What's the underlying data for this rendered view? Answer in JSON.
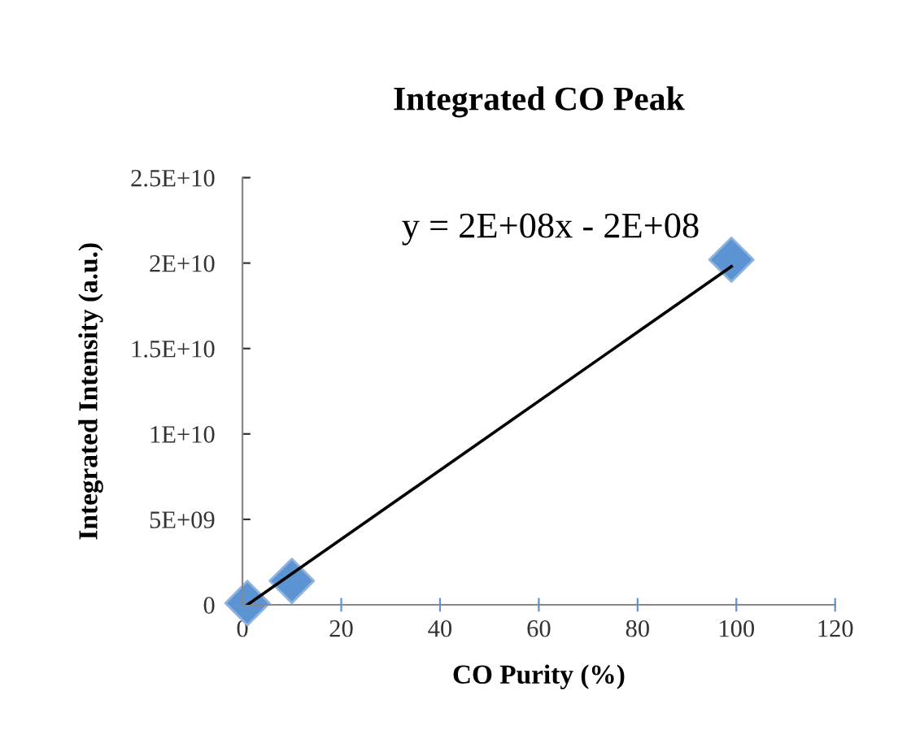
{
  "chart_data": {
    "type": "scatter",
    "title": "Integrated CO Peak",
    "xlabel": "CO Purity (%)",
    "ylabel": "Integrated Intensity (a.u.)",
    "series": [
      {
        "color": "#5b93d3",
        "marker": "diamond",
        "x": [
          1,
          10,
          99
        ],
        "values": [
          100000000,
          1400000000,
          20200000000
        ]
      },
      {
        "type": "line",
        "color": "#000000",
        "marker": "none",
        "line_style": "solid",
        "x": [
          1,
          99
        ],
        "values": [
          0,
          19800000000
        ]
      }
    ],
    "xlim": [
      0,
      120
    ],
    "xticks": [
      0,
      20,
      40,
      60,
      80,
      100,
      120
    ],
    "ylim": [
      0,
      25000000000
    ],
    "yticks": [
      {
        "value": 0,
        "label": "0"
      },
      {
        "value": 5000000000,
        "label": "5E+09"
      },
      {
        "value": 10000000000,
        "label": "1E+10"
      },
      {
        "value": 15000000000,
        "label": "1.5E+10"
      },
      {
        "value": 20000000000,
        "label": "2E+10"
      },
      {
        "value": 25000000000,
        "label": "2.5E+10"
      }
    ],
    "grid": false,
    "legend": false,
    "annotations": [
      "y = 2E+08x - 2E+08"
    ]
  }
}
